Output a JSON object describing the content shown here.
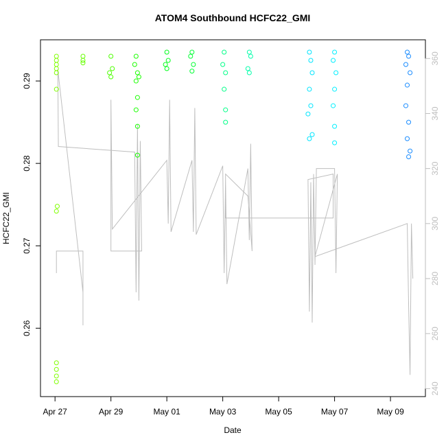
{
  "chart_data": {
    "type": "scatter",
    "title": "ATOM4 Southbound HCFC22_GMI",
    "xlabel": "Date",
    "ylabel": "HCFC22_GMI",
    "xlim": [
      -0.52,
      13.25
    ],
    "ylim": [
      0.2517,
      0.295
    ],
    "y2lim": [
      237.1,
      366.8
    ],
    "xticks": [
      {
        "value": 0,
        "label": "Apr 27"
      },
      {
        "value": 2,
        "label": "Apr 29"
      },
      {
        "value": 4,
        "label": "May 01"
      },
      {
        "value": 6,
        "label": "May 03"
      },
      {
        "value": 8,
        "label": "May 05"
      },
      {
        "value": 10,
        "label": "May 07"
      },
      {
        "value": 12,
        "label": "May 09"
      }
    ],
    "yticks": [
      0.26,
      0.27,
      0.28,
      0.29
    ],
    "y2ticks": [
      240,
      260,
      280,
      300,
      320,
      340,
      360
    ],
    "series": [
      {
        "type": "line",
        "axis": "y2",
        "color": "#bebebe",
        "x": [
          0.05,
          0.05,
          1.0,
          1.0,
          1.0,
          0.1,
          0.12,
          2.85,
          2.9,
          2.95,
          3.0,
          3.05,
          3.1,
          2.0,
          2.0,
          2.05,
          4.0,
          4.05,
          4.1,
          4.15,
          4.9,
          4.95,
          5.0,
          5.05,
          6.0,
          6.05,
          6.1,
          6.15,
          6.9,
          6.95,
          7.0,
          7.05,
          6.9,
          6.1,
          6.1,
          9.95,
          9.95,
          9.05,
          9.1,
          9.15,
          9.2,
          9.25,
          9.3,
          9.35,
          10.0,
          10.05,
          10.1,
          9.3,
          12.6,
          12.65,
          12.7,
          12.75,
          12.8
        ],
        "values": [
          282,
          290,
          290,
          263,
          275,
          356,
          328,
          326,
          275,
          336,
          272,
          330,
          290,
          290,
          345,
          298,
          323,
          300,
          345,
          297,
          323,
          297,
          342,
          296,
          321,
          282,
          316,
          278,
          320,
          294,
          329,
          290,
          310,
          318,
          302,
          302,
          318,
          316,
          268,
          315,
          264,
          318,
          285,
          320,
          320,
          282,
          318,
          288,
          300,
          270,
          245,
          300,
          280
        ]
      },
      {
        "type": "scatter",
        "color": "#80ff00",
        "x": [
          0.05,
          0.05,
          0.05,
          0.05,
          0.05,
          0.05,
          0.08,
          0.05,
          0.05,
          0.05,
          0.05,
          0.05
        ],
        "values": [
          0.293,
          0.2925,
          0.292,
          0.2915,
          0.291,
          0.289,
          0.2748,
          0.2742,
          0.2558,
          0.255,
          0.2542,
          0.2535
        ]
      },
      {
        "type": "scatter",
        "color": "#66ff00",
        "x": [
          1.0,
          1.0,
          1.0
        ],
        "values": [
          0.293,
          0.2925,
          0.2922
        ]
      },
      {
        "type": "scatter",
        "color": "#4dff00",
        "x": [
          2.0,
          2.05,
          1.95,
          2.0
        ],
        "values": [
          0.293,
          0.2915,
          0.291,
          0.2905
        ]
      },
      {
        "type": "scatter",
        "color": "#1aff00",
        "x": [
          2.9,
          2.85,
          2.95,
          3.0,
          2.9,
          2.95,
          2.9,
          2.95,
          2.95
        ],
        "values": [
          0.293,
          0.292,
          0.291,
          0.2905,
          0.29,
          0.288,
          0.2865,
          0.2845,
          0.281
        ]
      },
      {
        "type": "scatter",
        "color": "#00ff1a",
        "x": [
          4.0,
          4.05,
          3.95,
          4.0
        ],
        "values": [
          0.2935,
          0.2925,
          0.292,
          0.2915
        ]
      },
      {
        "type": "scatter",
        "color": "#00ff33",
        "x": [
          4.9,
          4.85,
          4.95,
          4.9
        ],
        "values": [
          0.2935,
          0.293,
          0.292,
          0.2912
        ]
      },
      {
        "type": "scatter",
        "color": "#00ff88",
        "x": [
          6.05,
          6.0,
          6.1,
          6.05,
          6.1,
          6.1
        ],
        "values": [
          0.2935,
          0.292,
          0.291,
          0.289,
          0.2865,
          0.285
        ]
      },
      {
        "type": "scatter",
        "color": "#00ffaa",
        "x": [
          6.95,
          7.0,
          6.9,
          6.95
        ],
        "values": [
          0.2935,
          0.293,
          0.2915,
          0.291
        ]
      },
      {
        "type": "scatter",
        "color": "#00e5ff",
        "x": [
          9.1,
          9.15,
          9.2,
          9.1,
          9.15,
          9.05,
          9.2,
          9.1
        ],
        "values": [
          0.2935,
          0.2925,
          0.291,
          0.289,
          0.287,
          0.286,
          0.2835,
          0.283
        ]
      },
      {
        "type": "scatter",
        "color": "#00f0ff",
        "x": [
          10.0,
          9.95,
          10.05,
          10.0,
          9.95,
          10.0,
          10.0
        ],
        "values": [
          0.2935,
          0.2925,
          0.291,
          0.289,
          0.287,
          0.2845,
          0.2825
        ]
      },
      {
        "type": "scatter",
        "color": "#1a8cff",
        "x": [
          12.6,
          12.65,
          12.55,
          12.7,
          12.6,
          12.55,
          12.65,
          12.6,
          12.7,
          12.65
        ],
        "values": [
          0.2935,
          0.293,
          0.292,
          0.291,
          0.2895,
          0.287,
          0.285,
          0.283,
          0.2815,
          0.2808
        ]
      }
    ]
  }
}
